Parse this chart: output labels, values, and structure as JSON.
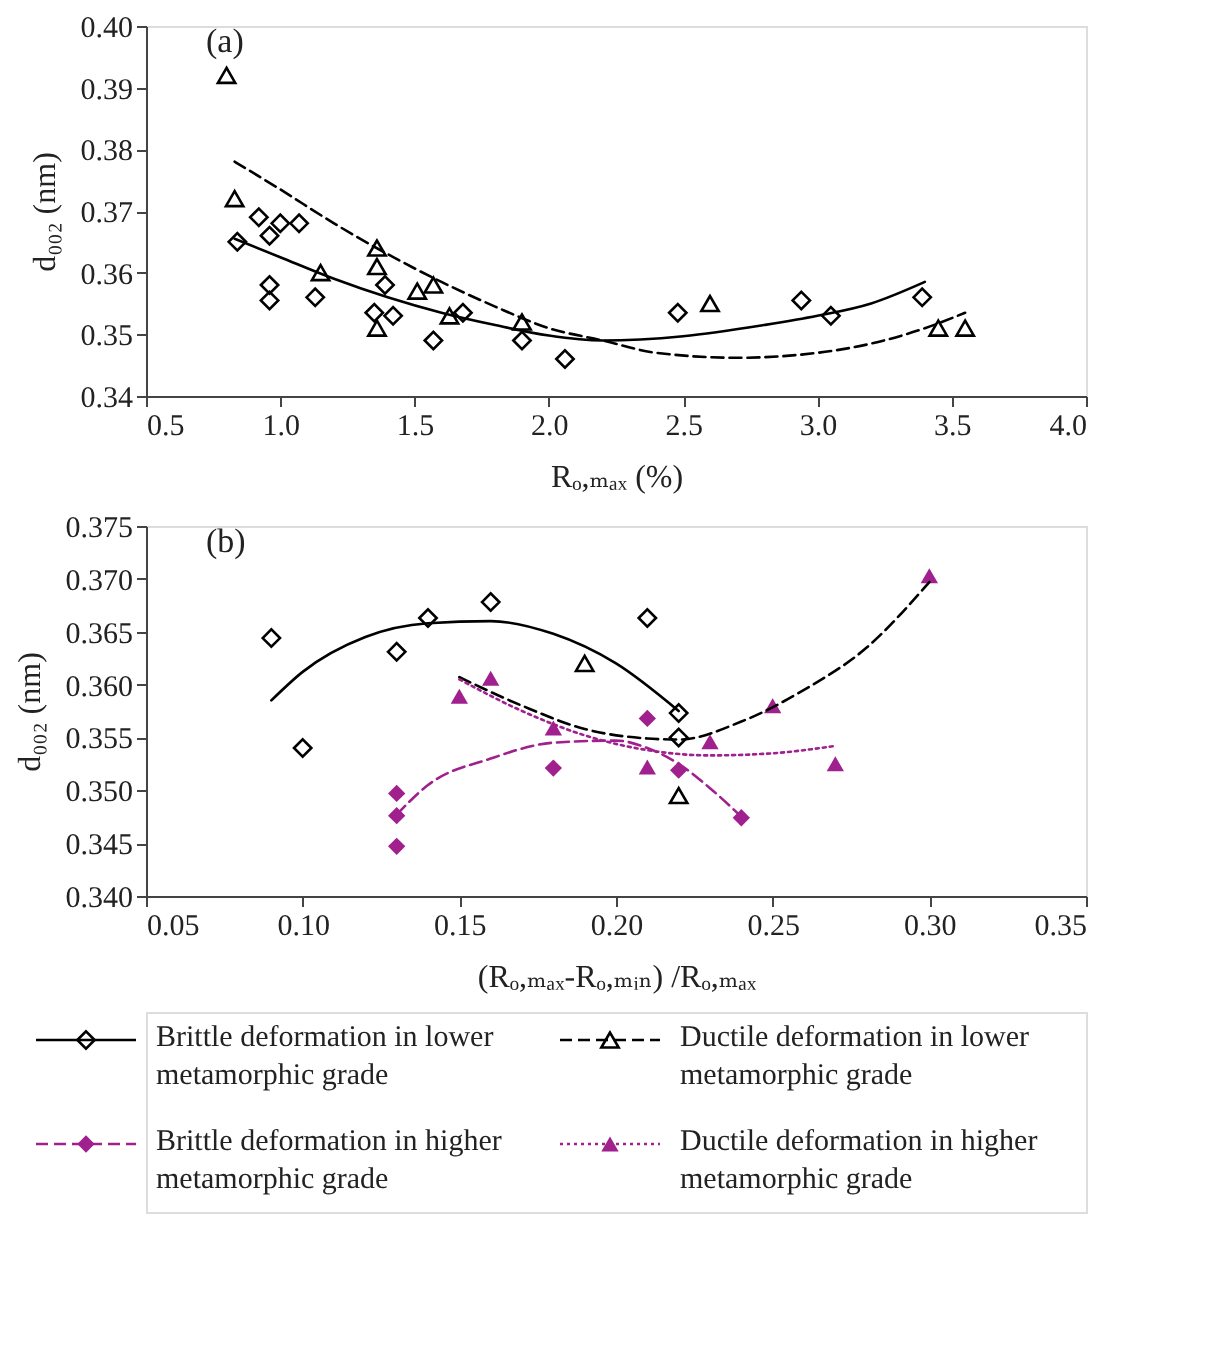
{
  "chart_data": [
    {
      "type": "scatter",
      "title": "(a)",
      "xlabel": "Rₒ,ₘₐₓ (%)",
      "ylabel": "d₀₀₂ (nm)",
      "xlim": [
        0.5,
        4.0
      ],
      "ylim": [
        0.34,
        0.4
      ],
      "xticks": [
        0.5,
        {
          "value": 1.0,
          "label": "1.0"
        },
        1.5,
        {
          "value": 2.0,
          "label": "2.0"
        },
        2.5,
        {
          "value": 3.0,
          "label": "3.0"
        },
        3.5,
        {
          "value": 4.0,
          "label": "4.0"
        }
      ],
      "yticks": [
        0.34,
        0.35,
        0.36,
        0.37,
        0.38,
        0.39,
        {
          "value": 0.4,
          "label": "0.40"
        }
      ],
      "series": [
        {
          "marker": "diamond",
          "color": "#000000",
          "x": [
            0.84,
            0.92,
            0.96,
            1.0,
            1.07,
            0.96,
            0.96,
            1.13,
            1.35,
            1.39,
            1.42,
            1.57,
            1.68,
            1.9,
            2.06,
            2.48,
            2.94,
            3.05,
            3.39
          ],
          "values": [
            0.365,
            0.369,
            0.366,
            0.368,
            0.368,
            0.358,
            0.3555,
            0.356,
            0.3535,
            0.358,
            0.353,
            0.349,
            0.3535,
            0.349,
            0.346,
            0.3535,
            0.3555,
            0.353,
            0.356
          ]
        },
        {
          "marker": "triangle",
          "color": "#000000",
          "x": [
            0.8,
            0.83,
            1.36,
            1.36,
            1.36,
            1.15,
            1.51,
            1.57,
            1.63,
            1.9,
            2.6,
            3.45,
            3.55
          ],
          "values": [
            0.392,
            0.372,
            0.364,
            0.361,
            0.351,
            0.36,
            0.357,
            0.358,
            0.353,
            0.352,
            0.355,
            0.351,
            0.351
          ]
        },
        {
          "type": "line",
          "line_style": "solid",
          "color": "#000000",
          "x": [
            0.83,
            1.0,
            1.2,
            1.4,
            1.6,
            1.8,
            2.0,
            2.2,
            2.5,
            2.8,
            3.0,
            3.2,
            3.4
          ],
          "values": [
            0.3655,
            0.3625,
            0.359,
            0.356,
            0.3535,
            0.3515,
            0.3498,
            0.349,
            0.3497,
            0.3515,
            0.353,
            0.355,
            0.3585
          ]
        },
        {
          "type": "line",
          "line_style": "dashed",
          "color": "#000000",
          "x": [
            0.83,
            1.0,
            1.2,
            1.4,
            1.6,
            1.8,
            2.0,
            2.2,
            2.4,
            2.7,
            3.0,
            3.2,
            3.4,
            3.55
          ],
          "values": [
            0.378,
            0.3735,
            0.368,
            0.363,
            0.3585,
            0.3545,
            0.351,
            0.349,
            0.347,
            0.3462,
            0.347,
            0.3485,
            0.351,
            0.3535
          ]
        }
      ]
    },
    {
      "type": "scatter",
      "title": "(b)",
      "xlabel": "(Rₒ,ₘₐₓ-Rₒ,ₘᵢₙ) /Rₒ,ₘₐₓ",
      "ylabel": "d₀₀₂ (nm)",
      "xlim": [
        0.05,
        0.35
      ],
      "ylim": [
        0.34,
        0.375
      ],
      "xticks": [
        0.05,
        {
          "value": 0.1,
          "label": "0.10"
        },
        0.15,
        {
          "value": 0.2,
          "label": "0.20"
        },
        0.25,
        {
          "value": 0.3,
          "label": "0.30"
        },
        0.35
      ],
      "yticks": [
        {
          "value": 0.34,
          "label": "0.340"
        },
        0.345,
        {
          "value": 0.35,
          "label": "0.350"
        },
        0.355,
        {
          "value": 0.36,
          "label": "0.360"
        },
        0.365,
        {
          "value": 0.37,
          "label": "0.370"
        },
        0.375
      ],
      "legend": "bottom",
      "series": [
        {
          "name": "Brittle deformation in lower metamorphic grade",
          "marker": "diamond",
          "line_style": "solid",
          "color": "#000000",
          "x": [
            0.09,
            0.1,
            0.13,
            0.14,
            0.16,
            0.21,
            0.22,
            0.22
          ],
          "values": [
            0.3644,
            0.354,
            0.3631,
            0.3663,
            0.3678,
            0.3663,
            0.3573,
            0.355
          ]
        },
        {
          "name": "Ductile deformation in lower metamorphic grade",
          "marker": "triangle",
          "line_style": "dashed",
          "color": "#000000",
          "x": [
            0.19,
            0.22
          ],
          "values": [
            0.362,
            0.3495
          ]
        },
        {
          "name": "Brittle deformation in higher metamorphic grade",
          "marker": "diamond",
          "line_style": "dashed",
          "color": "#a0208e",
          "x": [
            0.13,
            0.13,
            0.13,
            0.18,
            0.21,
            0.22,
            0.24
          ],
          "values": [
            0.3497,
            0.3476,
            0.3447,
            0.3521,
            0.3568,
            0.3519,
            0.3474
          ]
        },
        {
          "name": "Ductile deformation in higher metamorphic grade",
          "marker": "triangle",
          "line_style": "dotted",
          "color": "#a0208e",
          "x": [
            0.16,
            0.18,
            0.21,
            0.25,
            0.27
          ],
          "values": [
            0.3606,
            0.3559,
            0.3522,
            0.358,
            0.3525
          ]
        },
        {
          "marker": "triangle",
          "color": "#a0208e",
          "x": [
            0.15,
            0.23,
            0.3
          ],
          "values": [
            0.3589,
            0.3546,
            0.3703
          ]
        },
        {
          "type": "line",
          "line_style": "solid",
          "color": "#000000",
          "x": [
            0.09,
            0.1,
            0.12,
            0.14,
            0.16,
            0.18,
            0.2,
            0.22
          ],
          "values": [
            0.3585,
            0.3612,
            0.3645,
            0.3658,
            0.366,
            0.3648,
            0.362,
            0.3575
          ]
        },
        {
          "type": "line",
          "line_style": "dashed",
          "color": "#000000",
          "x": [
            0.15,
            0.17,
            0.19,
            0.21,
            0.22,
            0.24,
            0.26,
            0.28,
            0.3
          ],
          "values": [
            0.3607,
            0.358,
            0.3558,
            0.3549,
            0.3548,
            0.3565,
            0.3595,
            0.3635,
            0.3697
          ]
        },
        {
          "type": "line",
          "line_style": "dashed",
          "color": "#a0208e",
          "x": [
            0.13,
            0.14,
            0.16,
            0.18,
            0.2,
            0.21,
            0.22,
            0.23,
            0.24
          ],
          "values": [
            0.3477,
            0.3505,
            0.353,
            0.3545,
            0.3547,
            0.354,
            0.3525,
            0.3502,
            0.3475
          ]
        },
        {
          "type": "line",
          "line_style": "dotted",
          "color": "#a0208e",
          "x": [
            0.15,
            0.17,
            0.19,
            0.21,
            0.23,
            0.25,
            0.27
          ],
          "values": [
            0.3605,
            0.3575,
            0.3552,
            0.3538,
            0.3533,
            0.3535,
            0.3542
          ]
        }
      ]
    }
  ]
}
